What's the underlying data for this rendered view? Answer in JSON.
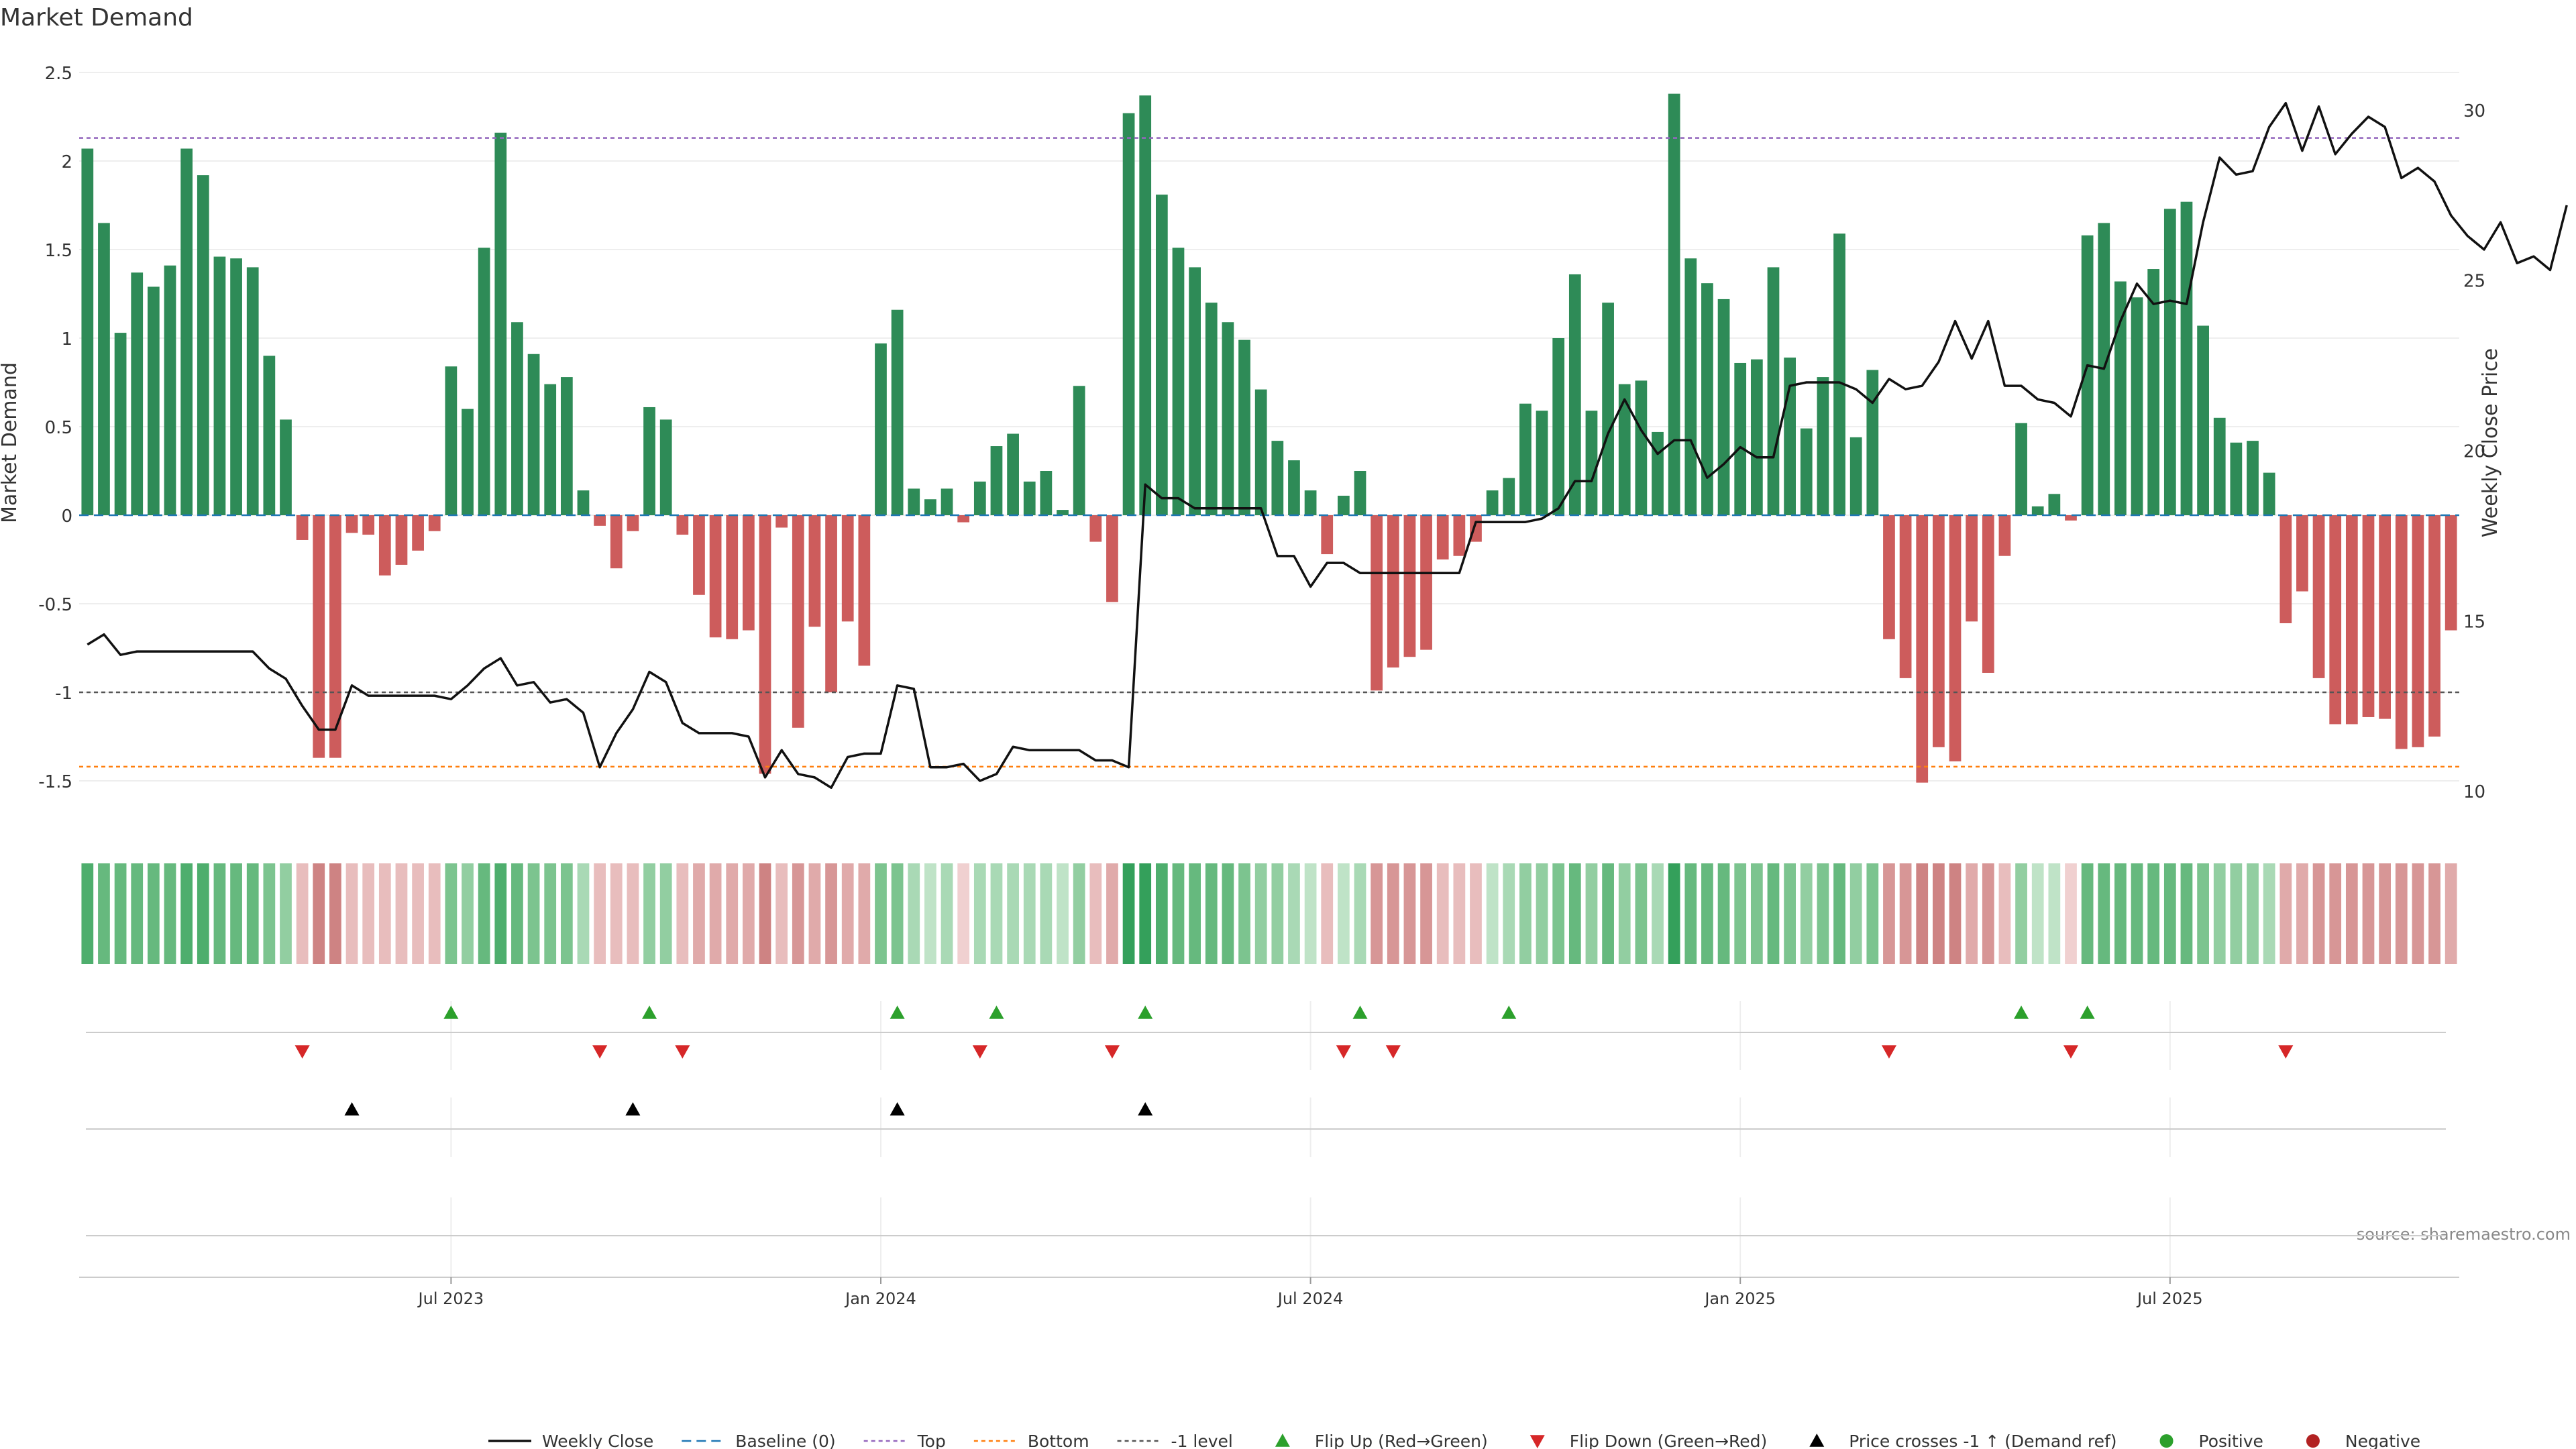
{
  "chart_data": {
    "type": "bar",
    "title": "Market Demand",
    "ylabel": "Market Demand",
    "y2label": "Weekly Close Price",
    "ylim": [
      -1.75,
      2.5
    ],
    "y2lim": [
      9.0,
      31.1
    ],
    "yticks": [
      "2.5",
      "2",
      "1.5",
      "1",
      "0.5",
      "0",
      "-0.5",
      "-1",
      "-1.5"
    ],
    "y2ticks": [
      "30",
      "25",
      "20",
      "15",
      "10"
    ],
    "xticks": [
      {
        "label": "Jul 2023",
        "index": 22
      },
      {
        "label": "Jan 2024",
        "index": 48
      },
      {
        "label": "Jul 2024",
        "index": 74
      },
      {
        "label": "Jan 2025",
        "index": 100
      },
      {
        "label": "Jul 2025",
        "index": 126
      }
    ],
    "levels": {
      "top": 2.13,
      "bottom": -1.42,
      "minus_one": -1.0
    },
    "series": [
      {
        "name": "Market Demand",
        "values": [
          2.07,
          1.65,
          1.03,
          1.37,
          1.29,
          1.41,
          2.07,
          1.92,
          1.46,
          1.45,
          1.4,
          0.9,
          0.54,
          -0.14,
          -1.37,
          -1.37,
          -0.1,
          -0.11,
          -0.34,
          -0.28,
          -0.2,
          -0.09,
          0.84,
          0.6,
          1.51,
          2.16,
          1.09,
          0.91,
          0.74,
          0.78,
          0.14,
          -0.06,
          -0.3,
          -0.09,
          0.61,
          0.54,
          -0.11,
          -0.45,
          -0.69,
          -0.7,
          -0.65,
          -1.46,
          -0.07,
          -1.2,
          -0.63,
          -1.0,
          -0.6,
          -0.85,
          0.97,
          1.16,
          0.15,
          0.09,
          0.15,
          -0.04,
          0.19,
          0.39,
          0.46,
          0.19,
          0.25,
          0.03,
          0.73,
          -0.15,
          -0.49,
          2.27,
          2.37,
          1.81,
          1.51,
          1.4,
          1.2,
          1.09,
          0.99,
          0.71,
          0.42,
          0.31,
          0.14,
          -0.22,
          0.11,
          0.25,
          -0.99,
          -0.86,
          -0.8,
          -0.76,
          -0.25,
          -0.23,
          -0.15,
          0.14,
          0.21,
          0.63,
          0.59,
          1.0,
          1.36,
          0.59,
          1.2,
          0.74,
          0.76,
          0.47,
          2.38,
          1.45,
          1.31,
          1.22,
          0.86,
          0.88,
          1.4,
          0.89,
          0.49,
          0.78,
          1.59,
          0.44,
          0.82,
          -0.7,
          -0.92,
          -1.51,
          -1.31,
          -1.39,
          -0.6,
          -0.89,
          -0.23,
          0.52,
          0.05,
          0.12,
          -0.03,
          1.58,
          1.65,
          1.32,
          1.23,
          1.39,
          1.73,
          1.77,
          1.07,
          0.55,
          0.41,
          0.42,
          0.24,
          -0.61,
          -0.43,
          -0.92,
          -1.18,
          -1.18,
          -1.14,
          -1.15,
          -1.32,
          -1.31,
          -1.25,
          -0.65
        ]
      },
      {
        "name": "Weekly Close",
        "axis": "right",
        "values": [
          14.3,
          14.6,
          14.0,
          14.1,
          14.1,
          14.1,
          14.1,
          14.1,
          14.1,
          14.1,
          14.1,
          13.6,
          13.3,
          12.5,
          11.8,
          11.8,
          13.1,
          12.8,
          12.8,
          12.8,
          12.8,
          12.8,
          12.7,
          13.1,
          13.6,
          13.9,
          13.1,
          13.2,
          12.6,
          12.7,
          12.3,
          10.7,
          11.7,
          12.4,
          13.5,
          13.2,
          12.0,
          11.7,
          11.7,
          11.7,
          11.6,
          10.4,
          11.2,
          10.5,
          10.4,
          10.1,
          11.0,
          11.1,
          11.1,
          13.1,
          13.0,
          10.7,
          10.7,
          10.8,
          10.3,
          10.5,
          11.3,
          11.2,
          11.2,
          11.2,
          11.2,
          10.9,
          10.9,
          10.7,
          19.0,
          18.6,
          18.6,
          18.3,
          18.3,
          18.3,
          18.3,
          18.3,
          16.9,
          16.9,
          16.0,
          16.7,
          16.7,
          16.4,
          16.4,
          16.4,
          16.4,
          16.4,
          16.4,
          16.4,
          17.9,
          17.9,
          17.9,
          17.9,
          18.0,
          18.3,
          19.1,
          19.1,
          20.5,
          21.5,
          20.6,
          19.9,
          20.3,
          20.3,
          19.2,
          19.6,
          20.1,
          19.8,
          19.8,
          21.9,
          22.0,
          22.0,
          22.0,
          21.8,
          21.4,
          22.1,
          21.8,
          21.9,
          22.6,
          23.8,
          22.7,
          23.8,
          21.9,
          21.9,
          21.5,
          21.4,
          21.0,
          22.5,
          22.4,
          23.8,
          24.9,
          24.3,
          24.4,
          24.3,
          26.7,
          28.6,
          28.1,
          28.2,
          29.5,
          30.2,
          28.8,
          30.1,
          28.7,
          29.3,
          29.8,
          29.5,
          28.0,
          28.3,
          27.9,
          26.9,
          26.3,
          25.9,
          26.7,
          25.5,
          25.7,
          25.3,
          27.2
        ]
      }
    ],
    "heat_strip": [
      7,
      6,
      6,
      6,
      6,
      6,
      7,
      7,
      6,
      6,
      6,
      5,
      4,
      -2,
      -5,
      -5,
      -2,
      -2,
      -2,
      -2,
      -2,
      -2,
      5,
      4,
      6,
      7,
      6,
      5,
      5,
      5,
      3,
      -2,
      -2,
      -2,
      4,
      4,
      -2,
      -3,
      -3,
      -3,
      -3,
      -5,
      -2,
      -4,
      -3,
      -4,
      -3,
      -3,
      5,
      5,
      3,
      2,
      3,
      -1,
      3,
      3,
      3,
      3,
      3,
      2,
      4,
      -2,
      -3,
      8,
      8,
      7,
      6,
      6,
      6,
      6,
      5,
      4,
      4,
      3,
      2,
      -2,
      2,
      3,
      -4,
      -4,
      -4,
      -4,
      -2,
      -2,
      -2,
      2,
      3,
      4,
      4,
      5,
      6,
      4,
      6,
      4,
      5,
      3,
      8,
      6,
      6,
      6,
      5,
      5,
      6,
      5,
      4,
      5,
      6,
      4,
      5,
      -4,
      -4,
      -5,
      -5,
      -5,
      -3,
      -4,
      -2,
      4,
      2,
      2,
      -1,
      6,
      6,
      6,
      6,
      6,
      6,
      6,
      5,
      4,
      4,
      4,
      3,
      -3,
      -3,
      -4,
      -4,
      -4,
      -4,
      -4,
      -4,
      -4,
      -4,
      -3
    ],
    "flip_up_indices": [
      22,
      34,
      49,
      55,
      64,
      77,
      86,
      117,
      121
    ],
    "flip_down_indices": [
      13,
      31,
      36,
      54,
      62,
      76,
      79,
      109,
      120,
      133
    ],
    "cross_up_indices": [
      16,
      33,
      49,
      64
    ],
    "colors": {
      "positive": "#2e8b57",
      "negative": "#cd5c5c",
      "close": "#111111",
      "baseline": "#1f77b4",
      "top": "#9467bd",
      "bottom": "#ff7f0e",
      "minus_one": "#555555",
      "flip_up": "#2ca02c",
      "flip_down": "#d62728",
      "cross": "#000000",
      "pos_dot": "#2ca02c",
      "neg_dot": "#b22222"
    },
    "legend": [
      {
        "label": "Weekly Close",
        "symbol": "line-solid",
        "color": "#111111"
      },
      {
        "label": "Baseline (0)",
        "symbol": "line-dash",
        "color": "#1f77b4"
      },
      {
        "label": "Top",
        "symbol": "line-dot",
        "color": "#9467bd"
      },
      {
        "label": "Bottom",
        "symbol": "line-dot",
        "color": "#ff7f0e"
      },
      {
        "label": "-1 level",
        "symbol": "line-dot",
        "color": "#555555"
      },
      {
        "label": "Flip Up (Red→Green)",
        "symbol": "tri-up",
        "color": "#2ca02c"
      },
      {
        "label": "Flip Down (Green→Red)",
        "symbol": "tri-down",
        "color": "#d62728"
      },
      {
        "label": "Price crosses -1 ↑ (Demand ref)",
        "symbol": "tri-up",
        "color": "#000000"
      },
      {
        "label": "Positive",
        "symbol": "dot",
        "color": "#2ca02c"
      },
      {
        "label": "Negative",
        "symbol": "dot",
        "color": "#b22222"
      }
    ],
    "legend_position": "bottom-center",
    "source": "source: sharemaestro.com"
  }
}
